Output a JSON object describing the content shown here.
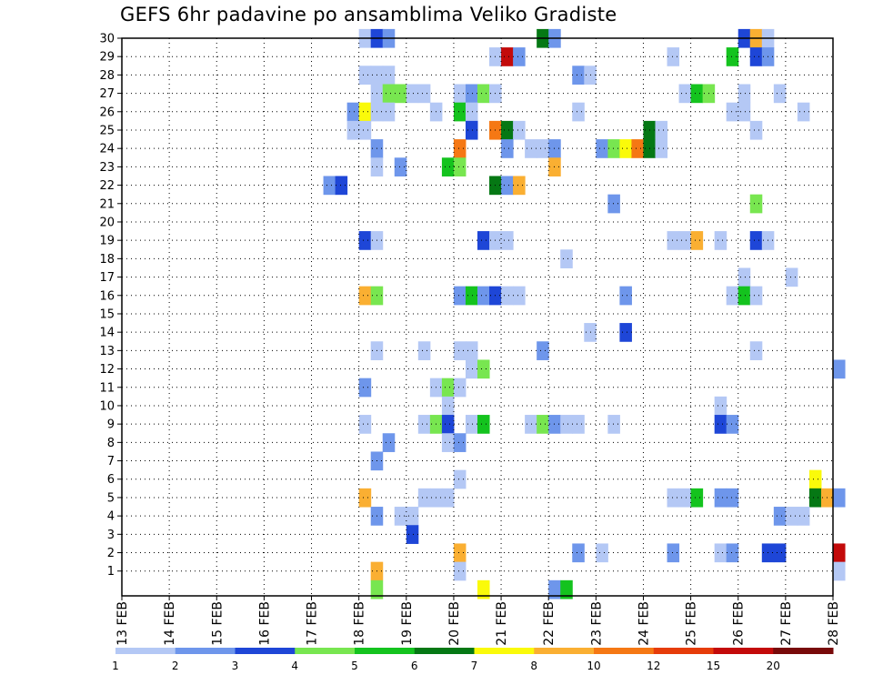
{
  "chart_data": {
    "type": "heatmap",
    "title": "GEFS 6hr padavine po ansamblima Veliko Gradiste",
    "x_tick_labels": [
      "13 FEB",
      "14 FEB",
      "15 FEB",
      "16 FEB",
      "17 FEB",
      "18 FEB",
      "19 FEB",
      "20 FEB",
      "21 FEB",
      "22 FEB",
      "23 FEB",
      "24 FEB",
      "25 FEB",
      "26 FEB",
      "27 FEB",
      "28 FEB"
    ],
    "y_tick_labels": [
      "1",
      "2",
      "3",
      "4",
      "5",
      "6",
      "7",
      "8",
      "9",
      "10",
      "11",
      "12",
      "13",
      "14",
      "15",
      "16",
      "17",
      "18",
      "19",
      "20",
      "21",
      "22",
      "23",
      "24",
      "25",
      "26",
      "27",
      "28",
      "29",
      "30"
    ],
    "xlim": [
      "13 FEB",
      "28 FEB"
    ],
    "ylim": [
      0,
      30
    ],
    "grid": true,
    "colorbar": {
      "labels": [
        "1",
        "2",
        "3",
        "4",
        "5",
        "6",
        "7",
        "8",
        "10",
        "12",
        "15",
        "20"
      ],
      "colors": [
        "#b4c8f5",
        "#6e96eb",
        "#1e46d7",
        "#78e650",
        "#14c31e",
        "#057814",
        "#fafa0a",
        "#faaf32",
        "#f57814",
        "#e63c0a",
        "#c30a0a",
        "#780a0a"
      ]
    },
    "time_step": "6hr",
    "cells": [
      {
        "time": "18 FEB 00",
        "member": 30,
        "level": 0
      },
      {
        "time": "18 FEB 06",
        "member": 30,
        "level": 2
      },
      {
        "time": "18 FEB 12",
        "member": 30,
        "level": 1
      },
      {
        "time": "21 FEB 18",
        "member": 30,
        "level": 5
      },
      {
        "time": "22 FEB 00",
        "member": 30,
        "level": 1
      },
      {
        "time": "26 FEB 00",
        "member": 30,
        "level": 2
      },
      {
        "time": "26 FEB 06",
        "member": 30,
        "level": 7
      },
      {
        "time": "26 FEB 12",
        "member": 30,
        "level": 0
      },
      {
        "time": "20 FEB 18",
        "member": 29,
        "level": 0
      },
      {
        "time": "21 FEB 00",
        "member": 29,
        "level": 10
      },
      {
        "time": "21 FEB 06",
        "member": 29,
        "level": 1
      },
      {
        "time": "24 FEB 12",
        "member": 29,
        "level": 0
      },
      {
        "time": "25 FEB 18",
        "member": 29,
        "level": 4
      },
      {
        "time": "26 FEB 06",
        "member": 29,
        "level": 2
      },
      {
        "time": "26 FEB 12",
        "member": 29,
        "level": 1
      },
      {
        "time": "18 FEB 00",
        "member": 28,
        "level": 0
      },
      {
        "time": "18 FEB 06",
        "member": 28,
        "level": 0
      },
      {
        "time": "18 FEB 12",
        "member": 28,
        "level": 0
      },
      {
        "time": "22 FEB 12",
        "member": 28,
        "level": 1
      },
      {
        "time": "22 FEB 18",
        "member": 28,
        "level": 0
      },
      {
        "time": "18 FEB 06",
        "member": 27,
        "level": 0
      },
      {
        "time": "18 FEB 12",
        "member": 27,
        "level": 3
      },
      {
        "time": "18 FEB 18",
        "member": 27,
        "level": 3
      },
      {
        "time": "19 FEB 00",
        "member": 27,
        "level": 0
      },
      {
        "time": "19 FEB 06",
        "member": 27,
        "level": 0
      },
      {
        "time": "20 FEB 00",
        "member": 27,
        "level": 0
      },
      {
        "time": "20 FEB 06",
        "member": 27,
        "level": 1
      },
      {
        "time": "20 FEB 12",
        "member": 27,
        "level": 3
      },
      {
        "time": "20 FEB 18",
        "member": 27,
        "level": 0
      },
      {
        "time": "24 FEB 18",
        "member": 27,
        "level": 0
      },
      {
        "time": "25 FEB 00",
        "member": 27,
        "level": 4
      },
      {
        "time": "25 FEB 06",
        "member": 27,
        "level": 3
      },
      {
        "time": "26 FEB 00",
        "member": 27,
        "level": 0
      },
      {
        "time": "26 FEB 18",
        "member": 27,
        "level": 0
      },
      {
        "time": "17 FEB 18",
        "member": 26,
        "level": 1
      },
      {
        "time": "18 FEB 00",
        "member": 26,
        "level": 6
      },
      {
        "time": "18 FEB 06",
        "member": 26,
        "level": 0
      },
      {
        "time": "18 FEB 12",
        "member": 26,
        "level": 0
      },
      {
        "time": "19 FEB 12",
        "member": 26,
        "level": 0
      },
      {
        "time": "20 FEB 00",
        "member": 26,
        "level": 4
      },
      {
        "time": "20 FEB 06",
        "member": 26,
        "level": 0
      },
      {
        "time": "22 FEB 12",
        "member": 26,
        "level": 0
      },
      {
        "time": "25 FEB 18",
        "member": 26,
        "level": 0
      },
      {
        "time": "26 FEB 00",
        "member": 26,
        "level": 0
      },
      {
        "time": "27 FEB 06",
        "member": 26,
        "level": 0
      },
      {
        "time": "17 FEB 18",
        "member": 25,
        "level": 0
      },
      {
        "time": "18 FEB 00",
        "member": 25,
        "level": 0
      },
      {
        "time": "20 FEB 06",
        "member": 25,
        "level": 2
      },
      {
        "time": "20 FEB 18",
        "member": 25,
        "level": 8
      },
      {
        "time": "21 FEB 00",
        "member": 25,
        "level": 5
      },
      {
        "time": "21 FEB 06",
        "member": 25,
        "level": 0
      },
      {
        "time": "24 FEB 00",
        "member": 25,
        "level": 5
      },
      {
        "time": "24 FEB 06",
        "member": 25,
        "level": 0
      },
      {
        "time": "26 FEB 06",
        "member": 25,
        "level": 0
      },
      {
        "time": "18 FEB 06",
        "member": 24,
        "level": 1
      },
      {
        "time": "20 FEB 00",
        "member": 24,
        "level": 8
      },
      {
        "time": "21 FEB 00",
        "member": 24,
        "level": 1
      },
      {
        "time": "21 FEB 12",
        "member": 24,
        "level": 0
      },
      {
        "time": "21 FEB 18",
        "member": 24,
        "level": 0
      },
      {
        "time": "22 FEB 00",
        "member": 24,
        "level": 1
      },
      {
        "time": "23 FEB 00",
        "member": 24,
        "level": 1
      },
      {
        "time": "23 FEB 06",
        "member": 24,
        "level": 3
      },
      {
        "time": "23 FEB 12",
        "member": 24,
        "level": 6
      },
      {
        "time": "23 FEB 18",
        "member": 24,
        "level": 8
      },
      {
        "time": "24 FEB 00",
        "member": 24,
        "level": 5
      },
      {
        "time": "24 FEB 06",
        "member": 24,
        "level": 0
      },
      {
        "time": "18 FEB 06",
        "member": 23,
        "level": 0
      },
      {
        "time": "18 FEB 18",
        "member": 23,
        "level": 1
      },
      {
        "time": "19 FEB 18",
        "member": 23,
        "level": 4
      },
      {
        "time": "20 FEB 00",
        "member": 23,
        "level": 3
      },
      {
        "time": "22 FEB 00",
        "member": 23,
        "level": 7
      },
      {
        "time": "17 FEB 06",
        "member": 22,
        "level": 1
      },
      {
        "time": "17 FEB 12",
        "member": 22,
        "level": 2
      },
      {
        "time": "20 FEB 18",
        "member": 22,
        "level": 5
      },
      {
        "time": "21 FEB 00",
        "member": 22,
        "level": 1
      },
      {
        "time": "21 FEB 06",
        "member": 22,
        "level": 7
      },
      {
        "time": "23 FEB 06",
        "member": 21,
        "level": 1
      },
      {
        "time": "26 FEB 06",
        "member": 21,
        "level": 3
      },
      {
        "time": "18 FEB 00",
        "member": 19,
        "level": 2
      },
      {
        "time": "18 FEB 06",
        "member": 19,
        "level": 0
      },
      {
        "time": "20 FEB 12",
        "member": 19,
        "level": 2
      },
      {
        "time": "20 FEB 18",
        "member": 19,
        "level": 0
      },
      {
        "time": "21 FEB 00",
        "member": 19,
        "level": 0
      },
      {
        "time": "24 FEB 12",
        "member": 19,
        "level": 0
      },
      {
        "time": "24 FEB 18",
        "member": 19,
        "level": 0
      },
      {
        "time": "25 FEB 00",
        "member": 19,
        "level": 7
      },
      {
        "time": "25 FEB 12",
        "member": 19,
        "level": 0
      },
      {
        "time": "26 FEB 06",
        "member": 19,
        "level": 2
      },
      {
        "time": "26 FEB 12",
        "member": 19,
        "level": 0
      },
      {
        "time": "22 FEB 06",
        "member": 18,
        "level": 0
      },
      {
        "time": "26 FEB 00",
        "member": 17,
        "level": 0
      },
      {
        "time": "27 FEB 00",
        "member": 17,
        "level": 0
      },
      {
        "time": "18 FEB 00",
        "member": 16,
        "level": 7
      },
      {
        "time": "18 FEB 06",
        "member": 16,
        "level": 3
      },
      {
        "time": "20 FEB 00",
        "member": 16,
        "level": 1
      },
      {
        "time": "20 FEB 06",
        "member": 16,
        "level": 4
      },
      {
        "time": "20 FEB 12",
        "member": 16,
        "level": 1
      },
      {
        "time": "20 FEB 18",
        "member": 16,
        "level": 2
      },
      {
        "time": "21 FEB 00",
        "member": 16,
        "level": 0
      },
      {
        "time": "21 FEB 06",
        "member": 16,
        "level": 0
      },
      {
        "time": "23 FEB 12",
        "member": 16,
        "level": 1
      },
      {
        "time": "25 FEB 18",
        "member": 16,
        "level": 0
      },
      {
        "time": "26 FEB 00",
        "member": 16,
        "level": 4
      },
      {
        "time": "26 FEB 06",
        "member": 16,
        "level": 0
      },
      {
        "time": "22 FEB 18",
        "member": 14,
        "level": 0
      },
      {
        "time": "23 FEB 12",
        "member": 14,
        "level": 2
      },
      {
        "time": "18 FEB 06",
        "member": 13,
        "level": 0
      },
      {
        "time": "19 FEB 06",
        "member": 13,
        "level": 0
      },
      {
        "time": "20 FEB 00",
        "member": 13,
        "level": 0
      },
      {
        "time": "20 FEB 06",
        "member": 13,
        "level": 0
      },
      {
        "time": "21 FEB 18",
        "member": 13,
        "level": 1
      },
      {
        "time": "26 FEB 06",
        "member": 13,
        "level": 0
      },
      {
        "time": "20 FEB 06",
        "member": 12,
        "level": 0
      },
      {
        "time": "20 FEB 12",
        "member": 12,
        "level": 3
      },
      {
        "time": "28 FEB 00",
        "member": 12,
        "level": 1
      },
      {
        "time": "18 FEB 00",
        "member": 11,
        "level": 1
      },
      {
        "time": "19 FEB 12",
        "member": 11,
        "level": 0
      },
      {
        "time": "19 FEB 18",
        "member": 11,
        "level": 3
      },
      {
        "time": "20 FEB 00",
        "member": 11,
        "level": 0
      },
      {
        "time": "19 FEB 18",
        "member": 10,
        "level": 0
      },
      {
        "time": "25 FEB 12",
        "member": 10,
        "level": 0
      },
      {
        "time": "18 FEB 00",
        "member": 9,
        "level": 0
      },
      {
        "time": "19 FEB 06",
        "member": 9,
        "level": 0
      },
      {
        "time": "19 FEB 12",
        "member": 9,
        "level": 3
      },
      {
        "time": "19 FEB 18",
        "member": 9,
        "level": 2
      },
      {
        "time": "20 FEB 06",
        "member": 9,
        "level": 0
      },
      {
        "time": "20 FEB 12",
        "member": 9,
        "level": 4
      },
      {
        "time": "21 FEB 12",
        "member": 9,
        "level": 0
      },
      {
        "time": "21 FEB 18",
        "member": 9,
        "level": 3
      },
      {
        "time": "22 FEB 00",
        "member": 9,
        "level": 1
      },
      {
        "time": "22 FEB 06",
        "member": 9,
        "level": 0
      },
      {
        "time": "22 FEB 12",
        "member": 9,
        "level": 0
      },
      {
        "time": "23 FEB 06",
        "member": 9,
        "level": 0
      },
      {
        "time": "25 FEB 12",
        "member": 9,
        "level": 2
      },
      {
        "time": "25 FEB 18",
        "member": 9,
        "level": 1
      },
      {
        "time": "18 FEB 12",
        "member": 8,
        "level": 1
      },
      {
        "time": "19 FEB 18",
        "member": 8,
        "level": 0
      },
      {
        "time": "20 FEB 00",
        "member": 8,
        "level": 1
      },
      {
        "time": "18 FEB 06",
        "member": 7,
        "level": 1
      },
      {
        "time": "20 FEB 00",
        "member": 6,
        "level": 0
      },
      {
        "time": "27 FEB 12",
        "member": 6,
        "level": 6
      },
      {
        "time": "18 FEB 00",
        "member": 5,
        "level": 7
      },
      {
        "time": "19 FEB 06",
        "member": 5,
        "level": 0
      },
      {
        "time": "19 FEB 12",
        "member": 5,
        "level": 0
      },
      {
        "time": "19 FEB 18",
        "member": 5,
        "level": 0
      },
      {
        "time": "24 FEB 12",
        "member": 5,
        "level": 0
      },
      {
        "time": "24 FEB 18",
        "member": 5,
        "level": 0
      },
      {
        "time": "25 FEB 00",
        "member": 5,
        "level": 4
      },
      {
        "time": "25 FEB 12",
        "member": 5,
        "level": 1
      },
      {
        "time": "25 FEB 18",
        "member": 5,
        "level": 1
      },
      {
        "time": "27 FEB 12",
        "member": 5,
        "level": 5
      },
      {
        "time": "27 FEB 18",
        "member": 5,
        "level": 7
      },
      {
        "time": "28 FEB 00",
        "member": 5,
        "level": 1
      },
      {
        "time": "18 FEB 06",
        "member": 4,
        "level": 1
      },
      {
        "time": "18 FEB 18",
        "member": 4,
        "level": 0
      },
      {
        "time": "19 FEB 00",
        "member": 4,
        "level": 0
      },
      {
        "time": "26 FEB 18",
        "member": 4,
        "level": 1
      },
      {
        "time": "27 FEB 00",
        "member": 4,
        "level": 0
      },
      {
        "time": "27 FEB 06",
        "member": 4,
        "level": 0
      },
      {
        "time": "19 FEB 00",
        "member": 3,
        "level": 2
      },
      {
        "time": "20 FEB 00",
        "member": 2,
        "level": 7
      },
      {
        "time": "22 FEB 12",
        "member": 2,
        "level": 1
      },
      {
        "time": "23 FEB 00",
        "member": 2,
        "level": 0
      },
      {
        "time": "24 FEB 12",
        "member": 2,
        "level": 1
      },
      {
        "time": "25 FEB 12",
        "member": 2,
        "level": 0
      },
      {
        "time": "25 FEB 18",
        "member": 2,
        "level": 1
      },
      {
        "time": "26 FEB 12",
        "member": 2,
        "level": 2
      },
      {
        "time": "26 FEB 18",
        "member": 2,
        "level": 2
      },
      {
        "time": "28 FEB 00",
        "member": 2,
        "level": 10
      },
      {
        "time": "18 FEB 06",
        "member": 1,
        "level": 7
      },
      {
        "time": "20 FEB 00",
        "member": 1,
        "level": 0
      },
      {
        "time": "28 FEB 00",
        "member": 1,
        "level": 0
      },
      {
        "time": "18 FEB 06",
        "member": 0,
        "level": 3
      },
      {
        "time": "20 FEB 12",
        "member": 0,
        "level": 6
      },
      {
        "time": "22 FEB 00",
        "member": 0,
        "level": 1
      },
      {
        "time": "22 FEB 06",
        "member": 0,
        "level": 4
      }
    ]
  }
}
